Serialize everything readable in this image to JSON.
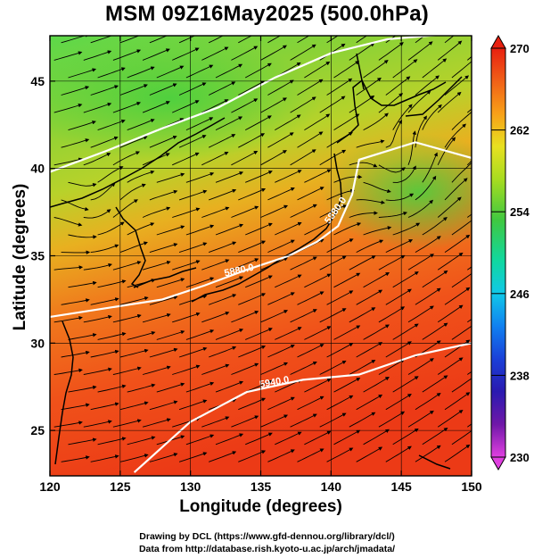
{
  "title": "MSM 09Z16May2025 (500.0hPa)",
  "axes": {
    "xlabel": "Longitude (degrees)",
    "ylabel": "Latitude  (degrees)",
    "xticks": [
      "120",
      "125",
      "130",
      "135",
      "140",
      "145",
      "150"
    ],
    "yticks": [
      "25",
      "30",
      "35",
      "40",
      "45"
    ]
  },
  "colorbar": {
    "ticks": [
      "270",
      "262",
      "254",
      "246",
      "238",
      "230"
    ],
    "colors": [
      "#e040e0",
      "#9a1aa8",
      "#3a1aa0",
      "#1e30d8",
      "#1e70f0",
      "#10b0f0",
      "#10d8d0",
      "#10d890",
      "#30c830",
      "#78d020",
      "#b8e020",
      "#e8e020",
      "#f8b818",
      "#f88018",
      "#f04818",
      "#e82010"
    ]
  },
  "contour_labels": [
    "5880.0",
    "5880.0",
    "5940.0"
  ],
  "credits": {
    "line1": "Drawing by DCL (https://www.gfd-dennou.org/library/dcl/)",
    "line2": "Data from http://database.rish.kyoto-u.ac.jp/arch/jmadata/"
  },
  "chart_data": {
    "type": "heatmap",
    "title": "MSM 09Z16May2025 (500.0hPa)",
    "xlabel": "Longitude (degrees)",
    "ylabel": "Latitude  (degrees)",
    "xlim": [
      120,
      150
    ],
    "ylim": [
      22.4,
      47.6
    ],
    "colorbar_range": [
      230,
      270
    ],
    "colorbar_ticks": [
      270,
      262,
      254,
      246,
      238,
      230
    ],
    "contours": [
      {
        "label": "5880.0",
        "points": [
          [
            120,
            31.5
          ],
          [
            124,
            32.0
          ],
          [
            128,
            32.5
          ],
          [
            131,
            33.3
          ],
          [
            134,
            34.2
          ],
          [
            137,
            35.0
          ],
          [
            139,
            35.8
          ],
          [
            140.5,
            36.7
          ],
          [
            141.5,
            38.5
          ],
          [
            142,
            40.5
          ],
          [
            146,
            41.5
          ],
          [
            150,
            40.6
          ]
        ]
      },
      {
        "label": "5940.0",
        "points": [
          [
            126,
            22.6
          ],
          [
            130,
            25.5
          ],
          [
            134,
            27.2
          ],
          [
            138,
            27.9
          ],
          [
            142,
            28.2
          ],
          [
            146,
            29.3
          ],
          [
            150,
            30.0
          ]
        ]
      },
      {
        "label": "",
        "points": [
          [
            120,
            39.8
          ],
          [
            124,
            41.0
          ],
          [
            128,
            42.3
          ],
          [
            132,
            43.5
          ],
          [
            136,
            45.2
          ],
          [
            140,
            46.6
          ],
          [
            144,
            47.4
          ],
          [
            150,
            47.8
          ]
        ]
      }
    ],
    "temperature_field": [
      {
        "lat": 47.0,
        "value": 255
      },
      {
        "lat": 42.0,
        "value": 258
      },
      {
        "lat": 38.0,
        "value": 260
      },
      {
        "lat": 35.0,
        "value": 264
      },
      {
        "lat": 31.0,
        "value": 267
      },
      {
        "lat": 27.0,
        "value": 268
      },
      {
        "lat": 23.0,
        "value": 268
      }
    ]
  }
}
